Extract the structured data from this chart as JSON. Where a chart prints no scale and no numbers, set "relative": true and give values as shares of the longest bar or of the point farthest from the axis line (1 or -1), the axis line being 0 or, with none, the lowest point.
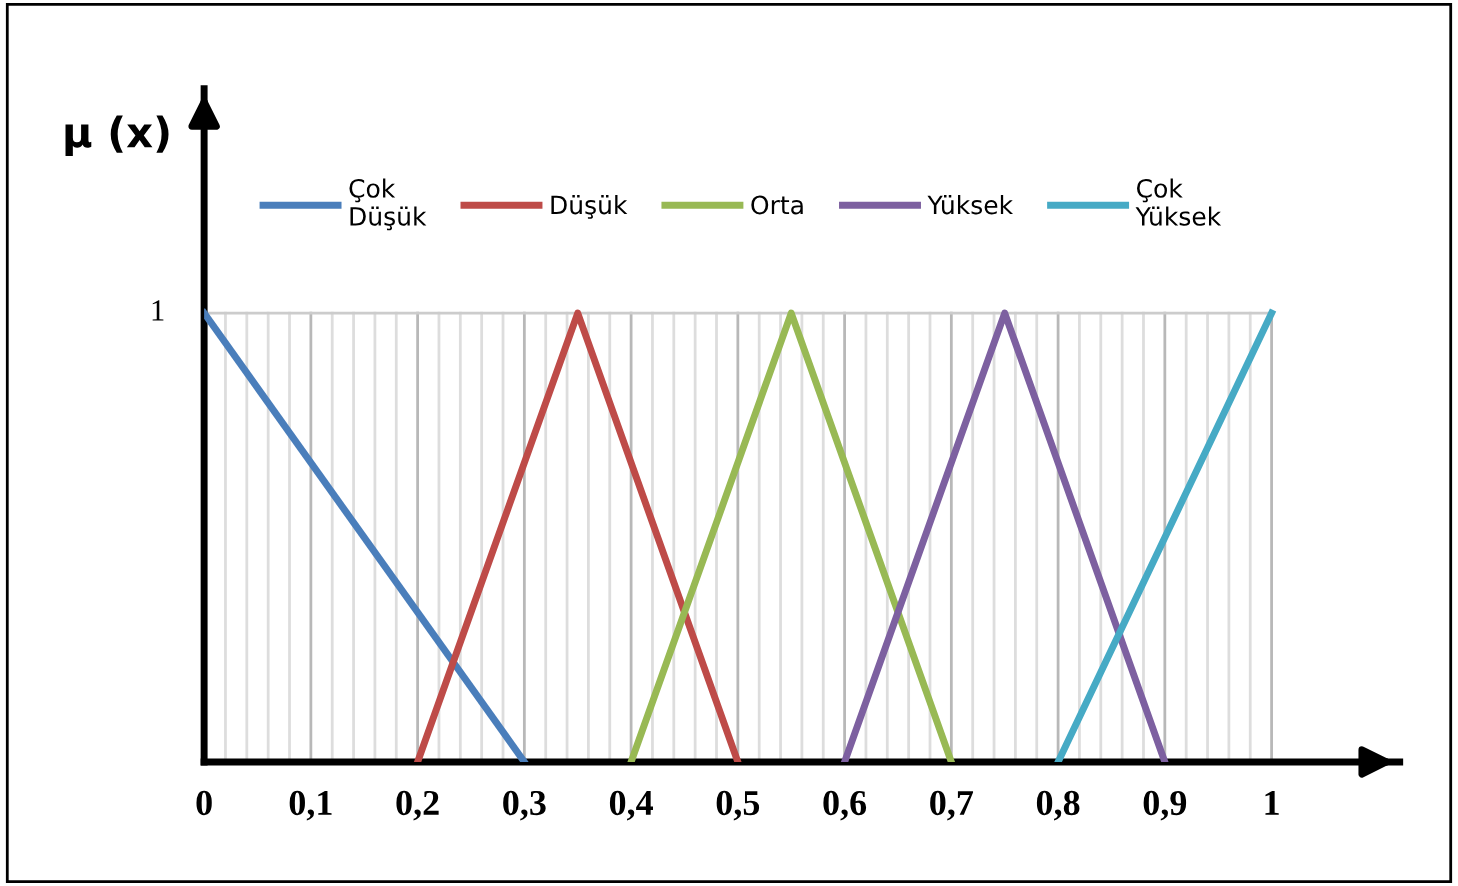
{
  "chart_data": {
    "type": "line",
    "ylabel": "μ (x)",
    "series": [
      {
        "name": "Çok\nDüşük",
        "color": "#4a7ebb",
        "x": [
          0,
          0.3
        ],
        "values": [
          1,
          0
        ]
      },
      {
        "name": "Düşük",
        "color": "#be4b48",
        "x": [
          0.2,
          0.35,
          0.5
        ],
        "values": [
          0,
          1,
          0
        ]
      },
      {
        "name": "Orta",
        "color": "#98b954",
        "x": [
          0.4,
          0.55,
          0.7
        ],
        "values": [
          0,
          1,
          0
        ]
      },
      {
        "name": "Yüksek",
        "color": "#7d60a0",
        "x": [
          0.6,
          0.75,
          0.9
        ],
        "values": [
          0,
          1,
          0
        ]
      },
      {
        "name": "Çok\nYüksek",
        "color": "#46aac5",
        "x": [
          0.8,
          1
        ],
        "values": [
          0,
          1
        ]
      }
    ],
    "xlim": [
      0,
      1.12
    ],
    "xticks": [
      {
        "value": 0,
        "label": "0"
      },
      {
        "value": 0.02,
        "label": null
      },
      {
        "value": 0.04,
        "label": null
      },
      {
        "value": 0.06,
        "label": null
      },
      {
        "value": 0.08,
        "label": null
      },
      {
        "value": 0.1,
        "label": "0,1"
      },
      {
        "value": 0.12,
        "label": null
      },
      {
        "value": 0.14,
        "label": null
      },
      {
        "value": 0.16,
        "label": null
      },
      {
        "value": 0.18,
        "label": null
      },
      {
        "value": 0.2,
        "label": "0,2"
      },
      {
        "value": 0.22,
        "label": null
      },
      {
        "value": 0.24,
        "label": null
      },
      {
        "value": 0.26,
        "label": null
      },
      {
        "value": 0.28,
        "label": null
      },
      {
        "value": 0.3,
        "label": "0,3"
      },
      {
        "value": 0.32,
        "label": null
      },
      {
        "value": 0.34,
        "label": null
      },
      {
        "value": 0.36,
        "label": null
      },
      {
        "value": 0.38,
        "label": null
      },
      {
        "value": 0.4,
        "label": "0,4"
      },
      {
        "value": 0.42,
        "label": null
      },
      {
        "value": 0.44,
        "label": null
      },
      {
        "value": 0.46,
        "label": null
      },
      {
        "value": 0.48,
        "label": null
      },
      {
        "value": 0.5,
        "label": "0,5"
      },
      {
        "value": 0.52,
        "label": null
      },
      {
        "value": 0.54,
        "label": null
      },
      {
        "value": 0.56,
        "label": null
      },
      {
        "value": 0.58,
        "label": null
      },
      {
        "value": 0.6,
        "label": "0,6"
      },
      {
        "value": 0.62,
        "label": null
      },
      {
        "value": 0.64,
        "label": null
      },
      {
        "value": 0.66,
        "label": null
      },
      {
        "value": 0.68,
        "label": null
      },
      {
        "value": 0.7,
        "label": "0,7"
      },
      {
        "value": 0.72,
        "label": null
      },
      {
        "value": 0.74,
        "label": null
      },
      {
        "value": 0.76,
        "label": null
      },
      {
        "value": 0.78,
        "label": null
      },
      {
        "value": 0.8,
        "label": "0,8"
      },
      {
        "value": 0.82,
        "label": null
      },
      {
        "value": 0.84,
        "label": null
      },
      {
        "value": 0.86,
        "label": null
      },
      {
        "value": 0.88,
        "label": null
      },
      {
        "value": 0.9,
        "label": "0,9"
      },
      {
        "value": 0.92,
        "label": null
      },
      {
        "value": 0.94,
        "label": null
      },
      {
        "value": 0.96,
        "label": null
      },
      {
        "value": 0.98,
        "label": null
      },
      {
        "value": 1,
        "label": "1"
      }
    ],
    "relative": true,
    "annotations": [
      {
        "text": "1",
        "x": 0,
        "y": 1
      }
    ],
    "grid": true,
    "legend": "top",
    "line_style": "solid"
  }
}
